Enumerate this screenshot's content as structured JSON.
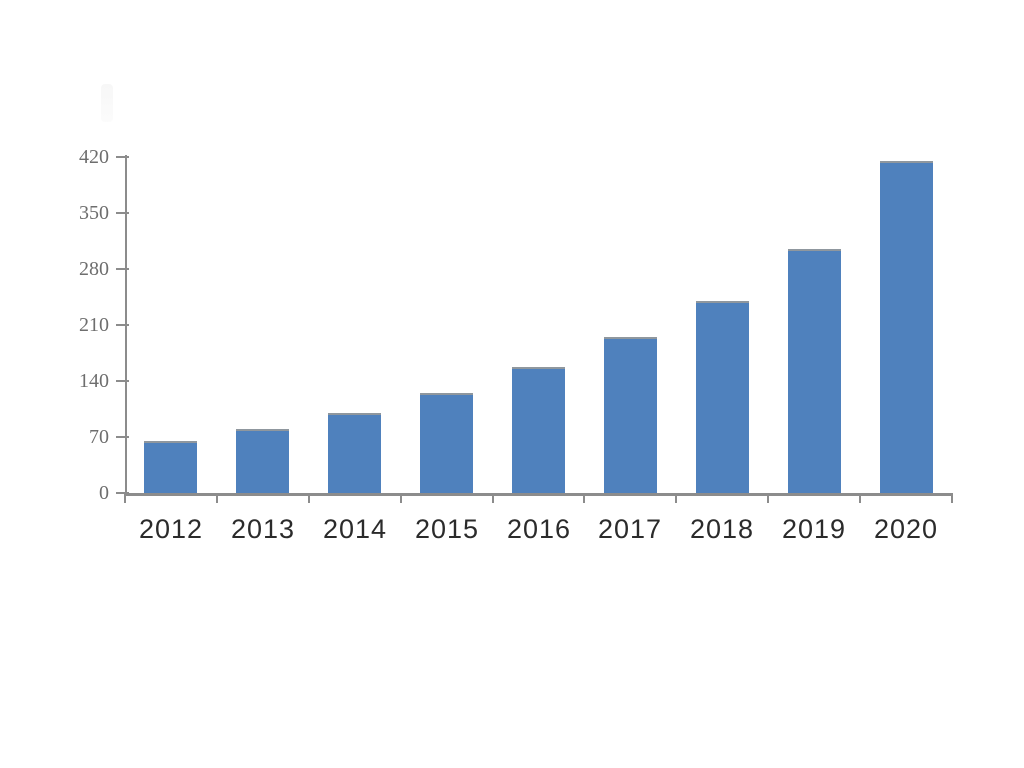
{
  "chart_data": {
    "type": "bar",
    "title": "",
    "xlabel": "",
    "ylabel": "",
    "categories": [
      "2012",
      "2013",
      "2014",
      "2015",
      "2016",
      "2017",
      "2018",
      "2019",
      "2020"
    ],
    "values": [
      65,
      80,
      100,
      125,
      157,
      195,
      240,
      305,
      415
    ],
    "ylim": [
      0,
      420
    ],
    "yticks": [
      0,
      70,
      140,
      210,
      280,
      350,
      420
    ],
    "grid": false,
    "legend": "none",
    "bar_color": "#4f81bd",
    "axis_color": "#8c8c8c",
    "ytick_label_color": "#6e6e6e",
    "xtick_label_color": "#2b2b2b",
    "background_color": "#ffffff"
  }
}
